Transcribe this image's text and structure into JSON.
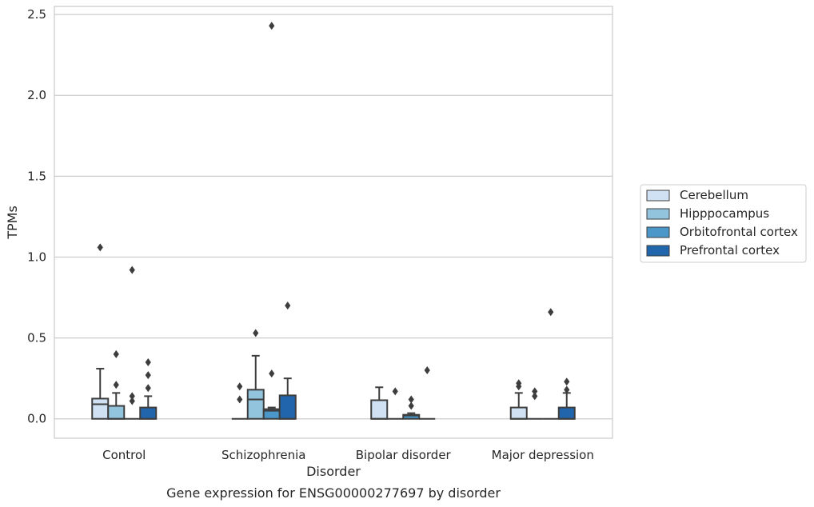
{
  "chart_data": {
    "type": "box",
    "title": "Gene expression for ENSG00000277697 by disorder",
    "xlabel": "Disorder",
    "ylabel": "TPMs",
    "ylim": [
      -0.12,
      2.55
    ],
    "yticks": [
      0.0,
      0.5,
      1.0,
      1.5,
      2.0,
      2.5
    ],
    "ytick_labels": [
      "0.0",
      "0.5",
      "1.0",
      "1.5",
      "2.0",
      "2.5"
    ],
    "grid": "horizontal",
    "legend_position": "right",
    "categories": [
      "Control",
      "Schizophrenia",
      "Bipolar disorder",
      "Major depression"
    ],
    "series": [
      {
        "name": "Cerebellum",
        "color": "#cfe1f2",
        "boxes": [
          {
            "q1": 0.0,
            "median": 0.09,
            "q3": 0.125,
            "whisker_low": 0.0,
            "whisker_high": 0.31,
            "outliers": [
              1.06
            ]
          },
          {
            "q1": 0.0,
            "median": 0.0,
            "q3": 0.0,
            "whisker_low": 0.0,
            "whisker_high": 0.0,
            "outliers": [
              0.2,
              0.12
            ]
          },
          {
            "q1": 0.0,
            "median": 0.0,
            "q3": 0.115,
            "whisker_low": 0.0,
            "whisker_high": 0.195,
            "outliers": []
          },
          {
            "q1": 0.0,
            "median": 0.0,
            "q3": 0.07,
            "whisker_low": 0.0,
            "whisker_high": 0.16,
            "outliers": [
              0.22,
              0.2
            ]
          }
        ]
      },
      {
        "name": "Hipppocampus",
        "color": "#93c4de",
        "boxes": [
          {
            "q1": 0.0,
            "median": 0.0,
            "q3": 0.08,
            "whisker_low": 0.0,
            "whisker_high": 0.16,
            "outliers": [
              0.4,
              0.21
            ]
          },
          {
            "q1": 0.0,
            "median": 0.12,
            "q3": 0.18,
            "whisker_low": 0.0,
            "whisker_high": 0.39,
            "outliers": [
              0.53
            ]
          },
          {
            "q1": 0.0,
            "median": 0.0,
            "q3": 0.0,
            "whisker_low": 0.0,
            "whisker_high": 0.0,
            "outliers": [
              0.17
            ]
          },
          {
            "q1": 0.0,
            "median": 0.0,
            "q3": 0.0,
            "whisker_low": 0.0,
            "whisker_high": 0.0,
            "outliers": [
              0.17,
              0.14
            ]
          }
        ]
      },
      {
        "name": "Orbitofrontal cortex",
        "color": "#4b97c9",
        "boxes": [
          {
            "q1": 0.0,
            "median": 0.0,
            "q3": 0.0,
            "whisker_low": 0.0,
            "whisker_high": 0.0,
            "outliers": [
              0.92,
              0.14,
              0.11
            ]
          },
          {
            "q1": 0.0,
            "median": 0.05,
            "q3": 0.06,
            "whisker_low": 0.0,
            "whisker_high": 0.07,
            "outliers": [
              2.43,
              0.28
            ]
          },
          {
            "q1": 0.0,
            "median": 0.02,
            "q3": 0.025,
            "whisker_low": 0.0,
            "whisker_high": 0.035,
            "outliers": [
              0.12,
              0.08
            ]
          },
          {
            "q1": 0.0,
            "median": 0.0,
            "q3": 0.0,
            "whisker_low": 0.0,
            "whisker_high": 0.0,
            "outliers": [
              0.66
            ]
          }
        ]
      },
      {
        "name": "Prefrontal cortex",
        "color": "#2166ac",
        "boxes": [
          {
            "q1": 0.0,
            "median": 0.0,
            "q3": 0.07,
            "whisker_low": 0.0,
            "whisker_high": 0.14,
            "outliers": [
              0.35,
              0.27,
              0.19
            ]
          },
          {
            "q1": 0.0,
            "median": 0.0,
            "q3": 0.145,
            "whisker_low": 0.0,
            "whisker_high": 0.25,
            "outliers": [
              0.7
            ]
          },
          {
            "q1": 0.0,
            "median": 0.0,
            "q3": 0.0,
            "whisker_low": 0.0,
            "whisker_high": 0.0,
            "outliers": [
              0.3
            ]
          },
          {
            "q1": 0.0,
            "median": 0.0,
            "q3": 0.07,
            "whisker_low": 0.0,
            "whisker_high": 0.16,
            "outliers": [
              0.23,
              0.18
            ]
          }
        ]
      }
    ]
  }
}
